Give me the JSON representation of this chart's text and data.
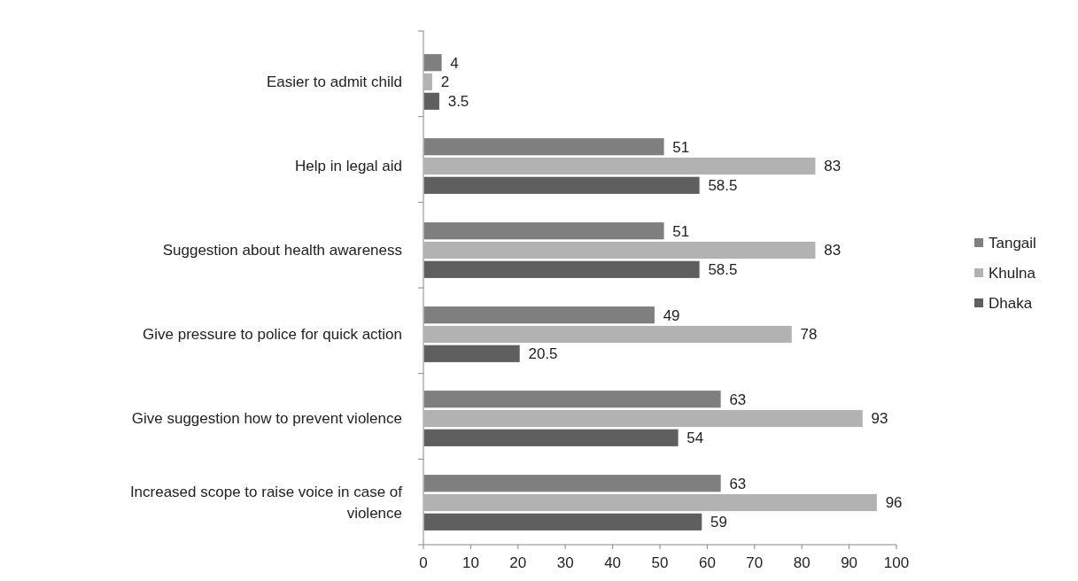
{
  "chart_data": {
    "type": "bar",
    "orientation": "horizontal",
    "categories": [
      "Easier to admit child",
      "Help in legal aid",
      "Suggestion about health awareness",
      "Give pressure to police for quick action",
      "Give suggestion how to prevent violence",
      "Increased scope to raise voice in case of violence"
    ],
    "series": [
      {
        "name": "Tangail",
        "color": "#7f7f7f",
        "values": [
          4,
          51,
          51,
          49,
          63,
          63
        ]
      },
      {
        "name": "Khulna",
        "color": "#b2b2b2",
        "values": [
          2,
          83,
          83,
          78,
          93,
          96
        ]
      },
      {
        "name": "Dhaka",
        "color": "#5f5f5f",
        "values": [
          3.5,
          58.5,
          58.5,
          20.5,
          54,
          59
        ]
      }
    ],
    "xlim": [
      0,
      100
    ],
    "xticks": [
      0,
      10,
      20,
      30,
      40,
      50,
      60,
      70,
      80,
      90,
      100
    ],
    "data_labels": true,
    "legend": "right",
    "grid": false
  }
}
